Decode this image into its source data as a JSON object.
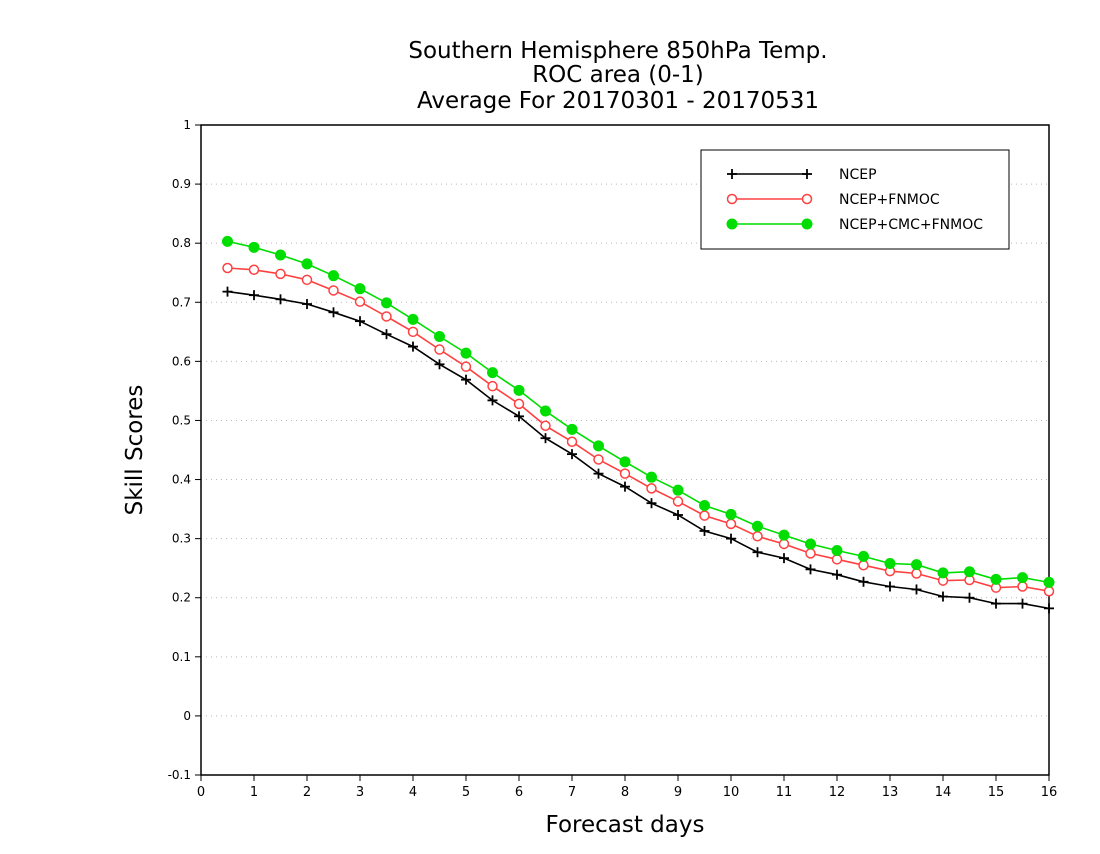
{
  "chart_data": {
    "type": "line",
    "title_lines": [
      "Southern Hemisphere 850hPa Temp.",
      "ROC area (0-1)",
      "Average For 20170301 - 20170531"
    ],
    "xlabel": "Forecast days",
    "ylabel": "Skill Scores",
    "xlim": [
      0,
      16
    ],
    "ylim": [
      -0.1,
      1
    ],
    "x_ticks": [
      0,
      1,
      2,
      3,
      4,
      5,
      6,
      7,
      8,
      9,
      10,
      11,
      12,
      13,
      14,
      15,
      16
    ],
    "x_tick_labels": [
      "0",
      "1",
      "2",
      "3",
      "4",
      "5",
      "6",
      "7",
      "8",
      "9",
      "10",
      "11",
      "12",
      "13",
      "14",
      "15",
      "16"
    ],
    "y_ticks": [
      -0.1,
      0,
      0.1,
      0.2,
      0.3,
      0.4,
      0.5,
      0.6,
      0.7,
      0.8,
      0.9,
      1
    ],
    "y_tick_labels": [
      "-0.1",
      "0",
      "0.1",
      "0.2",
      "0.3",
      "0.4",
      "0.5",
      "0.6",
      "0.7",
      "0.8",
      "0.9",
      "1"
    ],
    "grid": true,
    "legend_position": "top-right",
    "x": [
      0.5,
      1,
      1.5,
      2,
      2.5,
      3,
      3.5,
      4,
      4.5,
      5,
      5.5,
      6,
      6.5,
      7,
      7.5,
      8,
      8.5,
      9,
      9.5,
      10,
      10.5,
      11,
      11.5,
      12,
      12.5,
      13,
      13.5,
      14,
      14.5,
      15,
      15.5,
      16
    ],
    "series": [
      {
        "name": "NCEP",
        "color": "#000000",
        "marker": "plus",
        "values": [
          0.718,
          0.712,
          0.705,
          0.697,
          0.683,
          0.668,
          0.646,
          0.625,
          0.595,
          0.569,
          0.534,
          0.507,
          0.47,
          0.443,
          0.41,
          0.388,
          0.36,
          0.34,
          0.313,
          0.3,
          0.277,
          0.267,
          0.248,
          0.239,
          0.227,
          0.219,
          0.214,
          0.202,
          0.2,
          0.19,
          0.19,
          0.182
        ]
      },
      {
        "name": "NCEP+FNMOC",
        "color": "#ff4040",
        "marker": "open-circle",
        "values": [
          0.758,
          0.755,
          0.748,
          0.738,
          0.72,
          0.701,
          0.676,
          0.65,
          0.62,
          0.591,
          0.558,
          0.528,
          0.491,
          0.464,
          0.434,
          0.41,
          0.385,
          0.363,
          0.339,
          0.325,
          0.304,
          0.291,
          0.275,
          0.265,
          0.255,
          0.245,
          0.241,
          0.229,
          0.23,
          0.217,
          0.219,
          0.211
        ]
      },
      {
        "name": "NCEP+CMC+FNMOC",
        "color": "#00dd00",
        "marker": "filled-circle",
        "values": [
          0.803,
          0.793,
          0.78,
          0.765,
          0.745,
          0.723,
          0.699,
          0.671,
          0.642,
          0.614,
          0.581,
          0.551,
          0.516,
          0.485,
          0.457,
          0.43,
          0.404,
          0.382,
          0.356,
          0.341,
          0.321,
          0.306,
          0.291,
          0.28,
          0.27,
          0.258,
          0.256,
          0.242,
          0.244,
          0.231,
          0.234,
          0.226
        ]
      }
    ]
  }
}
